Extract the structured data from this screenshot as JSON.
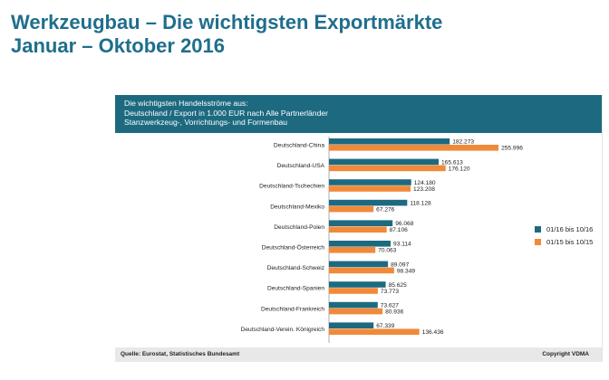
{
  "slide": {
    "title_line1": "Werkzeugbau – Die wichtigsten Exportmärkte",
    "title_line2": "Januar – Oktober 2016"
  },
  "panel": {
    "header_lines": [
      "Die wichtigsten Handelsströme aus:",
      "Deutschland / Export in 1.000 EUR nach Alle Partnerländer",
      "Stanzwerkzeug-, Vorrichtungs- und Formenbau"
    ]
  },
  "footer": {
    "source": "Quelle: Eurostat, Statistisches Bundesamt",
    "copyright": "Copyright VDMA"
  },
  "colors": {
    "series_2016": "#1d6a80",
    "series_2015": "#f08a3a",
    "header_bg": "#1d6a80",
    "title": "#1f6e8c"
  },
  "chart_data": {
    "type": "bar",
    "orientation": "horizontal",
    "categories": [
      "Deutschland-China",
      "Deutschland-USA",
      "Deutschland-Tschechien",
      "Deutschland-Mexiko",
      "Deutschland-Polen",
      "Deutschland-Österreich",
      "Deutschland-Schweiz",
      "Deutschland-Spanien",
      "Deutschland-Frankreich",
      "Deutschland-Verein. Königreich"
    ],
    "series": [
      {
        "name": "01/16 bis 10/16",
        "values": [
          182273,
          165613,
          124180,
          118128,
          96068,
          93114,
          89097,
          85625,
          73627,
          67339
        ],
        "labels": [
          "182.273",
          "165.613",
          "124.180",
          "118.128",
          "96.068",
          "93.114",
          "89.097",
          "85.625",
          "73.627",
          "67.339"
        ]
      },
      {
        "name": "01/15 bis 10/15",
        "values": [
          255996,
          176120,
          123208,
          67276,
          87106,
          70063,
          98349,
          73773,
          80936,
          136436
        ],
        "labels": [
          "255.996",
          "176.120",
          "123.208",
          "67.276",
          "87.106",
          "70.063",
          "98.349",
          "73.773",
          "80.936",
          "136.436"
        ]
      }
    ],
    "legend_position": "right",
    "grid": false
  }
}
